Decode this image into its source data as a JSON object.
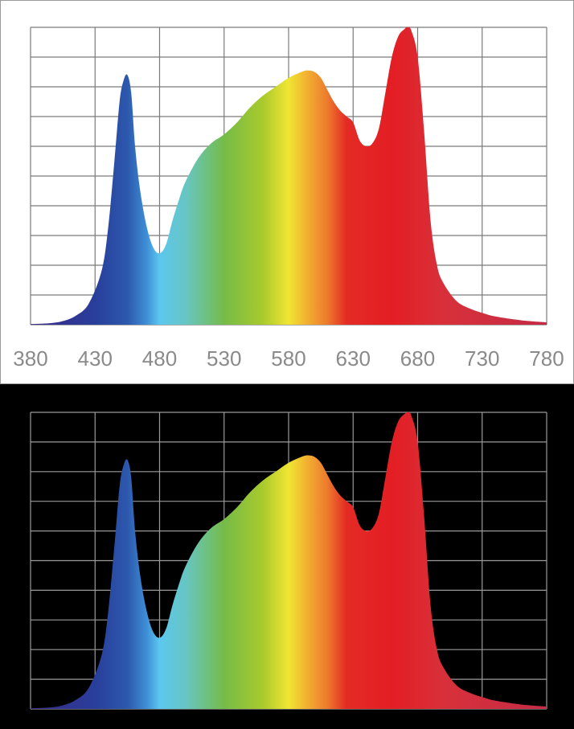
{
  "chart_data": [
    {
      "type": "area",
      "theme": "light",
      "background": "#ffffff",
      "grid_color": "#7a7a7a",
      "grid": true,
      "title": "",
      "xlabel": "",
      "ylabel": "",
      "xlim": [
        380,
        780
      ],
      "ylim": [
        0,
        1
      ],
      "x_ticks": [
        "380",
        "430",
        "480",
        "530",
        "580",
        "630",
        "680",
        "730",
        "780"
      ],
      "x": [
        380,
        395,
        405,
        415,
        425,
        435,
        440,
        445,
        449,
        452,
        455,
        458,
        461,
        465,
        470,
        475,
        480,
        485,
        490,
        495,
        500,
        510,
        520,
        530,
        540,
        550,
        560,
        570,
        580,
        590,
        595,
        600,
        605,
        610,
        615,
        620,
        625,
        630,
        635,
        640,
        645,
        650,
        655,
        660,
        665,
        670,
        672,
        675,
        680,
        685,
        690,
        695,
        700,
        710,
        720,
        730,
        740,
        760,
        780
      ],
      "y": [
        0.002,
        0.005,
        0.012,
        0.03,
        0.07,
        0.18,
        0.32,
        0.55,
        0.75,
        0.82,
        0.84,
        0.78,
        0.6,
        0.45,
        0.33,
        0.26,
        0.24,
        0.27,
        0.35,
        0.42,
        0.48,
        0.56,
        0.61,
        0.64,
        0.68,
        0.73,
        0.77,
        0.8,
        0.83,
        0.85,
        0.855,
        0.85,
        0.83,
        0.79,
        0.75,
        0.72,
        0.7,
        0.68,
        0.62,
        0.6,
        0.61,
        0.66,
        0.78,
        0.9,
        0.97,
        0.995,
        1.0,
        0.99,
        0.9,
        0.65,
        0.35,
        0.2,
        0.14,
        0.08,
        0.055,
        0.04,
        0.028,
        0.015,
        0.008
      ]
    },
    {
      "type": "area",
      "theme": "dark",
      "background": "#000000",
      "grid_color": "#9a9a9a",
      "grid": true,
      "title": "",
      "xlabel": "",
      "ylabel": "",
      "xlim": [
        380,
        780
      ],
      "ylim": [
        0,
        1
      ],
      "x": [
        380,
        395,
        405,
        415,
        425,
        435,
        440,
        445,
        449,
        452,
        455,
        458,
        461,
        465,
        470,
        475,
        480,
        485,
        490,
        495,
        500,
        510,
        520,
        530,
        540,
        550,
        560,
        570,
        580,
        590,
        595,
        600,
        605,
        610,
        615,
        620,
        625,
        630,
        635,
        640,
        645,
        650,
        655,
        660,
        665,
        670,
        672,
        675,
        680,
        685,
        690,
        695,
        700,
        710,
        720,
        730,
        740,
        760,
        780
      ],
      "y": [
        0.002,
        0.005,
        0.012,
        0.03,
        0.07,
        0.18,
        0.32,
        0.55,
        0.75,
        0.82,
        0.84,
        0.78,
        0.6,
        0.45,
        0.33,
        0.26,
        0.24,
        0.27,
        0.35,
        0.42,
        0.48,
        0.56,
        0.61,
        0.64,
        0.68,
        0.73,
        0.77,
        0.8,
        0.83,
        0.85,
        0.855,
        0.85,
        0.83,
        0.79,
        0.75,
        0.72,
        0.7,
        0.68,
        0.62,
        0.6,
        0.61,
        0.66,
        0.78,
        0.9,
        0.97,
        0.995,
        1.0,
        0.99,
        0.9,
        0.65,
        0.35,
        0.2,
        0.14,
        0.08,
        0.055,
        0.04,
        0.028,
        0.015,
        0.008
      ]
    }
  ],
  "spectrum_colors": [
    {
      "wl": 380,
      "color": "#3c2a88"
    },
    {
      "wl": 430,
      "color": "#283e9a"
    },
    {
      "wl": 455,
      "color": "#2c58ad"
    },
    {
      "wl": 470,
      "color": "#3e8fd6"
    },
    {
      "wl": 480,
      "color": "#5cc7ef"
    },
    {
      "wl": 500,
      "color": "#66c6c4"
    },
    {
      "wl": 530,
      "color": "#75bb48"
    },
    {
      "wl": 560,
      "color": "#a9ca2c"
    },
    {
      "wl": 580,
      "color": "#f0e533"
    },
    {
      "wl": 595,
      "color": "#f2ad31"
    },
    {
      "wl": 610,
      "color": "#ec7a2c"
    },
    {
      "wl": 625,
      "color": "#e42a24"
    },
    {
      "wl": 660,
      "color": "#e31e24"
    },
    {
      "wl": 700,
      "color": "#d8303a"
    },
    {
      "wl": 780,
      "color": "#c42b45"
    }
  ]
}
